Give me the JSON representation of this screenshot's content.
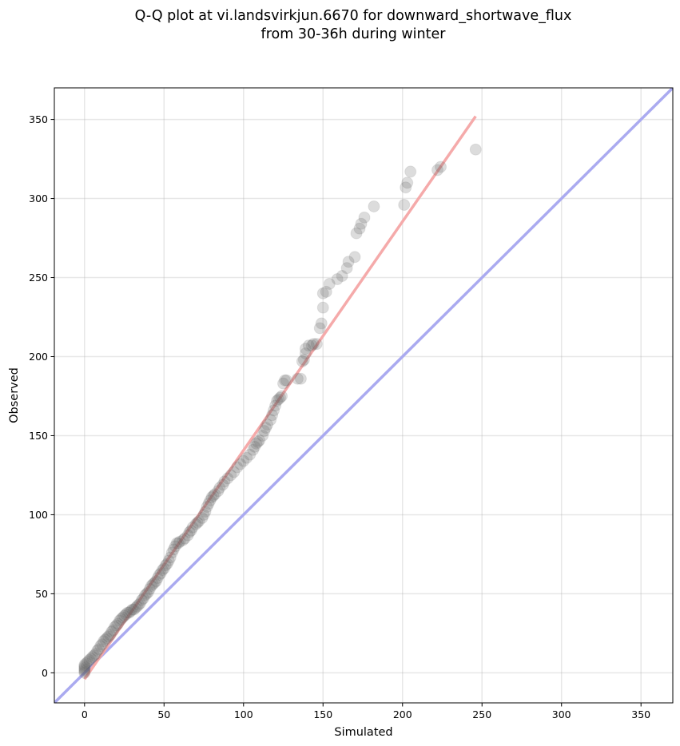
{
  "chart_data": {
    "type": "scatter",
    "title_line1": "Q-Q plot at vi.landsvirkjun.6670 for downward_shortwave_flux",
    "title_line2": "from 30-36h during winter",
    "xlabel": "Simulated",
    "ylabel": "Observed",
    "xlim": [
      -19,
      370
    ],
    "ylim": [
      -19,
      370
    ],
    "xticks": [
      0,
      50,
      100,
      150,
      200,
      250,
      300,
      350
    ],
    "yticks": [
      0,
      50,
      100,
      150,
      200,
      250,
      300,
      350
    ],
    "grid": true,
    "identity_line": {
      "color": "#aaaaf0",
      "from": [
        -19,
        -19
      ],
      "to": [
        370,
        370
      ]
    },
    "fit_line": {
      "color": "#f5aaaa",
      "from": [
        0,
        -4
      ],
      "to": [
        246,
        352
      ]
    },
    "point_color": "#606060",
    "points": [
      [
        0,
        0
      ],
      [
        0,
        1
      ],
      [
        0,
        2
      ],
      [
        0,
        3
      ],
      [
        0,
        4
      ],
      [
        0,
        5
      ],
      [
        1,
        6
      ],
      [
        2,
        7
      ],
      [
        3,
        8
      ],
      [
        4,
        9
      ],
      [
        5,
        10
      ],
      [
        6,
        11
      ],
      [
        7,
        12
      ],
      [
        8,
        14
      ],
      [
        9,
        15
      ],
      [
        10,
        17
      ],
      [
        11,
        18
      ],
      [
        12,
        20
      ],
      [
        13,
        21
      ],
      [
        14,
        22
      ],
      [
        15,
        23
      ],
      [
        16,
        24
      ],
      [
        17,
        26
      ],
      [
        18,
        27
      ],
      [
        19,
        29
      ],
      [
        20,
        30
      ],
      [
        21,
        31
      ],
      [
        22,
        33
      ],
      [
        23,
        34
      ],
      [
        24,
        35
      ],
      [
        25,
        36
      ],
      [
        26,
        37
      ],
      [
        27,
        38
      ],
      [
        28,
        38
      ],
      [
        29,
        39
      ],
      [
        30,
        40
      ],
      [
        31,
        40
      ],
      [
        32,
        41
      ],
      [
        33,
        42
      ],
      [
        34,
        43
      ],
      [
        35,
        44
      ],
      [
        36,
        46
      ],
      [
        37,
        47
      ],
      [
        38,
        49
      ],
      [
        39,
        50
      ],
      [
        40,
        51
      ],
      [
        41,
        53
      ],
      [
        42,
        55
      ],
      [
        43,
        56
      ],
      [
        44,
        57
      ],
      [
        45,
        58
      ],
      [
        46,
        60
      ],
      [
        47,
        62
      ],
      [
        48,
        63
      ],
      [
        49,
        65
      ],
      [
        50,
        66
      ],
      [
        51,
        68
      ],
      [
        52,
        69
      ],
      [
        53,
        71
      ],
      [
        54,
        73
      ],
      [
        55,
        76
      ],
      [
        56,
        78
      ],
      [
        57,
        80
      ],
      [
        58,
        82
      ],
      [
        59,
        82
      ],
      [
        60,
        83
      ],
      [
        62,
        84
      ],
      [
        63,
        85
      ],
      [
        65,
        87
      ],
      [
        66,
        89
      ],
      [
        67,
        90
      ],
      [
        68,
        92
      ],
      [
        70,
        94
      ],
      [
        71,
        95
      ],
      [
        72,
        96
      ],
      [
        74,
        98
      ],
      [
        75,
        100
      ],
      [
        76,
        102
      ],
      [
        77,
        105
      ],
      [
        78,
        107
      ],
      [
        79,
        109
      ],
      [
        80,
        111
      ],
      [
        81,
        112
      ],
      [
        82,
        113
      ],
      [
        84,
        115
      ],
      [
        85,
        117
      ],
      [
        87,
        119
      ],
      [
        88,
        121
      ],
      [
        90,
        123
      ],
      [
        92,
        125
      ],
      [
        94,
        127
      ],
      [
        96,
        130
      ],
      [
        98,
        132
      ],
      [
        100,
        134
      ],
      [
        102,
        136
      ],
      [
        104,
        138
      ],
      [
        106,
        141
      ],
      [
        107,
        143
      ],
      [
        108,
        145
      ],
      [
        109,
        146
      ],
      [
        110,
        147
      ],
      [
        112,
        150
      ],
      [
        113,
        153
      ],
      [
        114,
        155
      ],
      [
        115,
        157
      ],
      [
        117,
        160
      ],
      [
        118,
        163
      ],
      [
        119,
        166
      ],
      [
        120,
        169
      ],
      [
        121,
        172
      ],
      [
        122,
        173
      ],
      [
        123,
        174
      ],
      [
        124,
        175
      ],
      [
        125,
        183
      ],
      [
        126,
        185
      ],
      [
        127,
        185
      ],
      [
        134,
        186
      ],
      [
        136,
        186
      ],
      [
        137,
        197
      ],
      [
        138,
        198
      ],
      [
        139,
        202
      ],
      [
        139,
        205
      ],
      [
        141,
        207
      ],
      [
        143,
        207
      ],
      [
        144,
        208
      ],
      [
        146,
        208
      ],
      [
        148,
        218
      ],
      [
        149,
        221
      ],
      [
        150,
        231
      ],
      [
        150,
        240
      ],
      [
        152,
        241
      ],
      [
        154,
        246
      ],
      [
        159,
        249
      ],
      [
        162,
        251
      ],
      [
        165,
        256
      ],
      [
        166,
        260
      ],
      [
        170,
        263
      ],
      [
        171,
        278
      ],
      [
        173,
        281
      ],
      [
        174,
        284
      ],
      [
        176,
        288
      ],
      [
        182,
        295
      ],
      [
        201,
        296
      ],
      [
        202,
        307
      ],
      [
        203,
        310
      ],
      [
        205,
        317
      ],
      [
        222,
        318
      ],
      [
        224,
        320
      ],
      [
        246,
        331
      ]
    ]
  }
}
